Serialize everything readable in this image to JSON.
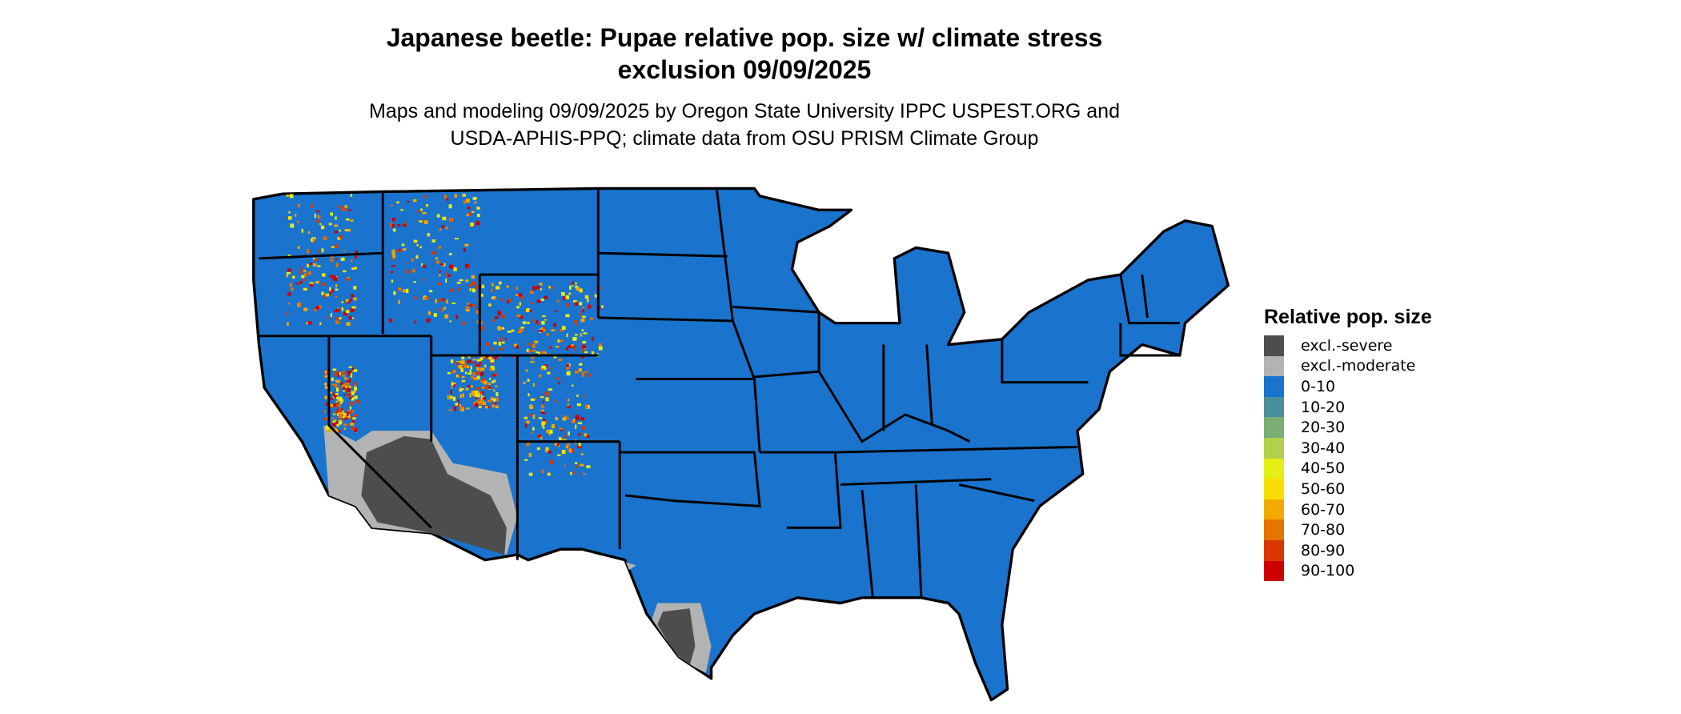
{
  "title": {
    "line1": "Japanese beetle: Pupae relative pop. size w/ climate stress",
    "line2": "exclusion 09/09/2025"
  },
  "subtitle": {
    "line1": "Maps and modeling 09/09/2025 by Oregon State University IPPC USPEST.ORG and",
    "line2": "USDA-APHIS-PPQ; climate data from OSU PRISM Climate Group"
  },
  "legend": {
    "title": "Relative pop. size",
    "items": [
      {
        "label": "excl.-severe",
        "color": "#4d4d4d"
      },
      {
        "label": "excl.-moderate",
        "color": "#b3b3b3"
      },
      {
        "label": "0-10",
        "color": "#1a73cc"
      },
      {
        "label": "10-20",
        "color": "#4a909c"
      },
      {
        "label": "20-30",
        "color": "#7aae74"
      },
      {
        "label": "30-40",
        "color": "#b2d04a"
      },
      {
        "label": "40-50",
        "color": "#e4ef16"
      },
      {
        "label": "50-60",
        "color": "#f8df00"
      },
      {
        "label": "60-70",
        "color": "#f2a900"
      },
      {
        "label": "70-80",
        "color": "#e67300"
      },
      {
        "label": "80-90",
        "color": "#d93700"
      },
      {
        "label": "90-100",
        "color": "#cc0000"
      }
    ]
  }
}
